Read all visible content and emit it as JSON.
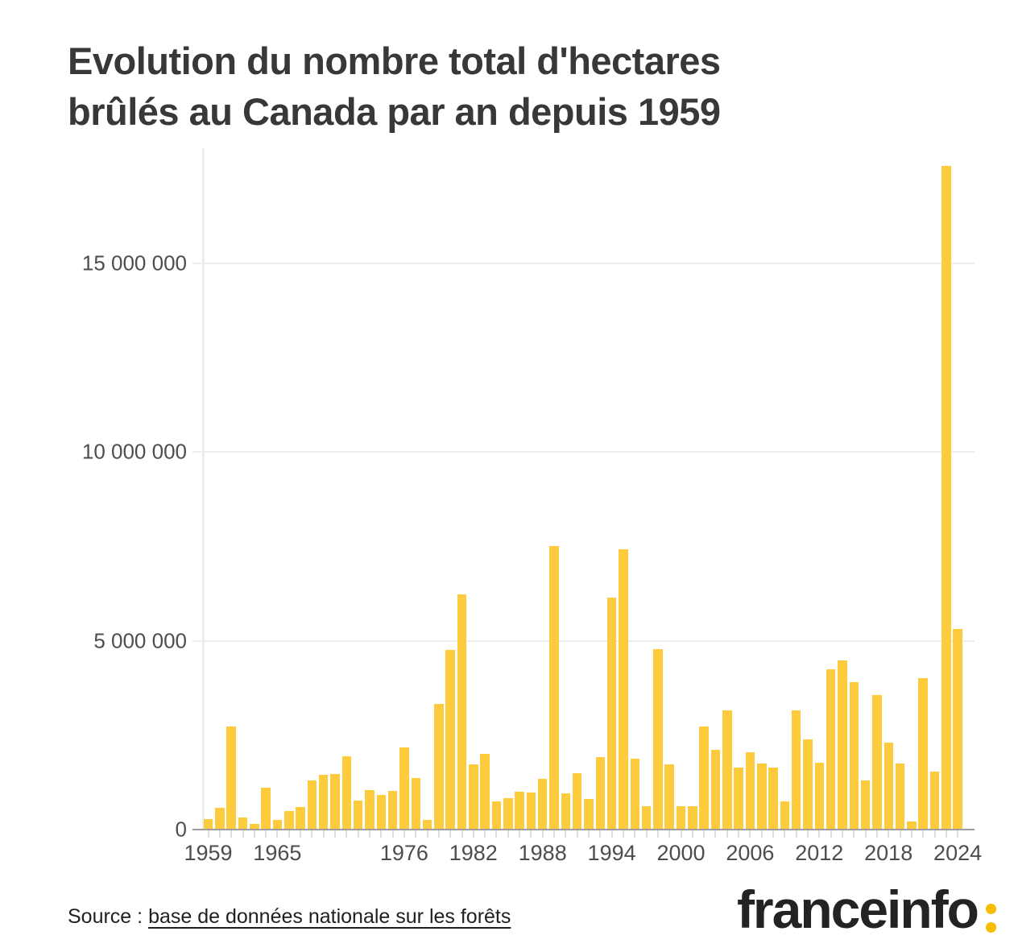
{
  "header": {
    "title_line1": "Evolution du nombre total d'hectares",
    "title_line2": "brûlés au Canada par an depuis 1959"
  },
  "source": {
    "prefix": "Source : ",
    "link_text": "base de données nationale sur les forêts"
  },
  "logo": {
    "text": "franceinfo"
  },
  "colors": {
    "bar": "#FDCB3C",
    "brand": "#F5BE00",
    "grid": "#EDEDED",
    "axis": "#9E9E9E",
    "tick": "#DEDEDE",
    "title": "#383838",
    "axistext": "#4D4D4D",
    "text": "#1F1F1F",
    "logotext": "#232323"
  },
  "chart_data": {
    "type": "bar",
    "title": "Evolution du nombre total d'hectares brûlés au Canada par an depuis 1959",
    "xlabel": "",
    "ylabel": "",
    "unit": "hectares",
    "grid": true,
    "legend": false,
    "ylim": [
      0,
      18000000
    ],
    "years": [
      1959,
      1960,
      1961,
      1962,
      1963,
      1964,
      1965,
      1966,
      1967,
      1968,
      1969,
      1970,
      1971,
      1972,
      1973,
      1974,
      1975,
      1976,
      1977,
      1978,
      1979,
      1980,
      1981,
      1982,
      1983,
      1984,
      1985,
      1986,
      1987,
      1988,
      1989,
      1990,
      1991,
      1992,
      1993,
      1994,
      1995,
      1996,
      1997,
      1998,
      1999,
      2000,
      2001,
      2002,
      2003,
      2004,
      2005,
      2006,
      2007,
      2008,
      2009,
      2010,
      2011,
      2012,
      2013,
      2014,
      2015,
      2016,
      2017,
      2018,
      2019,
      2020,
      2021,
      2022,
      2023,
      2024
    ],
    "values": [
      250000,
      550000,
      2720000,
      300000,
      130000,
      1080000,
      240000,
      480000,
      570000,
      1270000,
      1420000,
      1450000,
      1930000,
      740000,
      1020000,
      900000,
      1000000,
      2150000,
      1340000,
      230000,
      3310000,
      4740000,
      6200000,
      1710000,
      1980000,
      730000,
      820000,
      980000,
      970000,
      1320000,
      7500000,
      940000,
      1480000,
      780000,
      1890000,
      6130000,
      7410000,
      1860000,
      590000,
      4760000,
      1710000,
      590000,
      590000,
      2700000,
      2090000,
      3130000,
      1630000,
      2020000,
      1730000,
      1620000,
      720000,
      3130000,
      2360000,
      1760000,
      4220000,
      4470000,
      3880000,
      1290000,
      3540000,
      2280000,
      1730000,
      200000,
      4000000,
      1520000,
      17570000,
      5290000
    ],
    "y_ticks": [
      {
        "value": 15000000,
        "label": "15 000 000"
      },
      {
        "value": 10000000,
        "label": "10 000 000"
      },
      {
        "value": 5000000,
        "label": "5 000 000"
      },
      {
        "value": 0,
        "label": "0"
      }
    ],
    "x_ticks": [
      {
        "year": 1959,
        "label": "1959"
      },
      {
        "year": 1965,
        "label": "1965"
      },
      {
        "year": 1976,
        "label": "1976"
      },
      {
        "year": 1982,
        "label": "1982"
      },
      {
        "year": 1988,
        "label": "1988"
      },
      {
        "year": 1994,
        "label": "1994"
      },
      {
        "year": 2000,
        "label": "2000"
      },
      {
        "year": 2006,
        "label": "2006"
      },
      {
        "year": 2012,
        "label": "2012"
      },
      {
        "year": 2018,
        "label": "2018"
      }
    ]
  }
}
